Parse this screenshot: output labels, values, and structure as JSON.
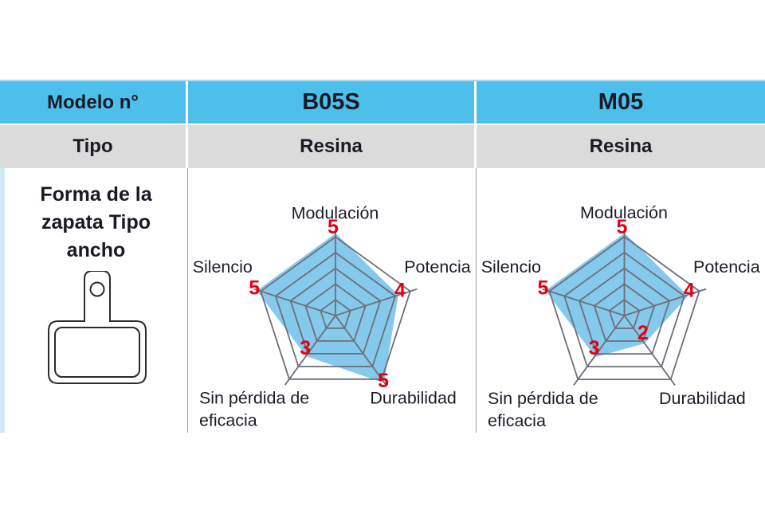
{
  "table": {
    "columns": [
      {
        "header": "Modelo n°",
        "tipo": "Tipo"
      },
      {
        "header": "B05S",
        "tipo": "Resina"
      },
      {
        "header": "M05",
        "tipo": "Resina"
      }
    ],
    "shape_row": {
      "lines": [
        "Forma de la",
        "zapata Tipo",
        "ancho"
      ],
      "icon": "brake-pad-icon"
    }
  },
  "colors": {
    "header_bg": "#4ebeeb",
    "header_top_edge": "#a9dcf2",
    "tipo_bg": "#dbdbdb",
    "row3_left_stripe": "#cfe9f6",
    "divider_gray": "#9b9b9b",
    "text_dark": "#1a1a26",
    "radar_fill": "#85c9ec",
    "radar_grid": "#6e6e78",
    "value_red": "#e60012"
  },
  "chart_data": [
    {
      "type": "radar",
      "title": "B05S",
      "grid": "pentagon",
      "rings": 5,
      "scale_max": 5,
      "axis_labels": [
        "Modulación",
        "Potencia",
        "Durabilidad",
        "Sin pérdida de\neficacia",
        "Silencio"
      ],
      "values": [
        5,
        4,
        5,
        3,
        5
      ],
      "fill_color": "#85c9ec",
      "grid_color": "#6e6e78",
      "value_label_color": "#e60012"
    },
    {
      "type": "radar",
      "title": "M05",
      "grid": "pentagon",
      "rings": 5,
      "scale_max": 5,
      "axis_labels": [
        "Modulación",
        "Potencia",
        "Durabilidad",
        "Sin pérdida de\neficacia",
        "Silencio"
      ],
      "values": [
        5,
        4,
        2,
        3,
        5
      ],
      "fill_color": "#85c9ec",
      "grid_color": "#6e6e78",
      "value_label_color": "#e60012"
    }
  ]
}
